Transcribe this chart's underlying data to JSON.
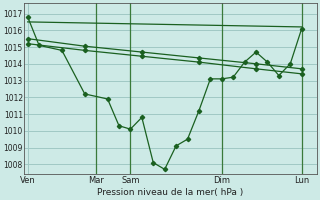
{
  "bg_color": "#cdeae6",
  "grid_color": "#a0c8c4",
  "line_color": "#1a6020",
  "marker_color": "#1a6020",
  "ylabel_ticks": [
    1008,
    1009,
    1010,
    1011,
    1012,
    1013,
    1014,
    1015,
    1016,
    1017
  ],
  "ylim": [
    1007.4,
    1017.6
  ],
  "xlabel": "Pression niveau de la mer( hPa )",
  "day_labels": [
    "Ven",
    "",
    "Mar",
    "Sam",
    "",
    "Dim",
    "",
    "Lun"
  ],
  "day_positions": [
    0,
    3,
    6,
    9,
    13,
    17,
    21,
    24
  ],
  "xlim": [
    -0.3,
    25.3
  ],
  "line1_x": [
    0,
    1,
    3,
    5,
    7,
    8,
    9,
    10,
    11,
    12,
    13,
    14,
    15,
    16,
    17,
    18,
    19,
    20,
    21,
    22,
    23,
    24
  ],
  "line1_y": [
    1016.8,
    1015.1,
    1014.8,
    1012.2,
    1011.9,
    1010.3,
    1010.1,
    1010.8,
    1008.1,
    1007.7,
    1009.1,
    1009.5,
    1011.2,
    1013.1,
    1013.1,
    1013.2,
    1014.1,
    1014.7,
    1014.1,
    1013.3,
    1014.0,
    1016.1
  ],
  "line2_x": [
    0,
    5,
    10,
    15,
    20,
    24
  ],
  "line2_y": [
    1015.2,
    1014.8,
    1014.45,
    1014.1,
    1013.7,
    1013.4
  ],
  "line3_x": [
    0,
    5,
    10,
    15,
    20,
    24
  ],
  "line3_y": [
    1015.5,
    1015.05,
    1014.7,
    1014.35,
    1014.0,
    1013.7
  ],
  "line4_x": [
    0,
    24
  ],
  "line4_y": [
    1016.5,
    1016.2
  ],
  "vline_positions": [
    6,
    9,
    17,
    24
  ]
}
